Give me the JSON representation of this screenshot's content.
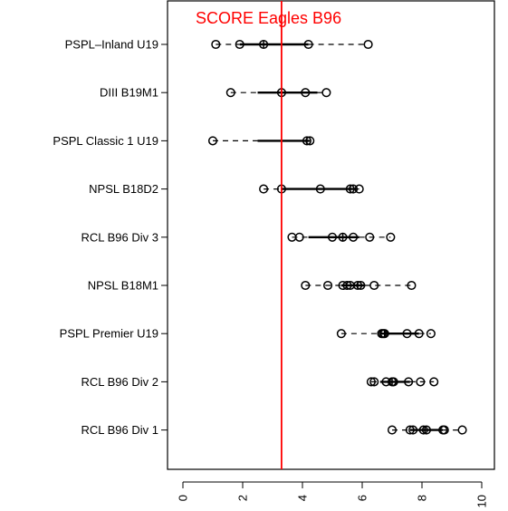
{
  "chart_data": {
    "type": "scatter",
    "title": "",
    "xlabel": "",
    "ylabel": "",
    "xlim": [
      -0.4,
      10.4
    ],
    "x_ticks": [
      "0",
      "2",
      "4",
      "6",
      "8",
      "10"
    ],
    "grid": false,
    "reference_line": {
      "label": "SCORE Eagles B96",
      "x": 3.3,
      "color": "#ff0000"
    },
    "categories": [
      "PSPL–Inland U19",
      "DIII B19M1",
      "PSPL Classic 1 U19",
      "NPSL B18D2",
      "RCL B96 Div 3",
      "NPSL B18M1",
      "PSPL Premier U19",
      "RCL B96 Div 2",
      "RCL B96 Div 1"
    ],
    "series": [
      {
        "points": [
          1.1,
          1.9,
          2.7,
          4.2,
          6.2
        ],
        "box": [
          1.9,
          2.7,
          4.2
        ]
      },
      {
        "points": [
          1.6,
          3.3,
          4.1,
          4.8
        ],
        "box": [
          2.5,
          3.3,
          4.5
        ]
      },
      {
        "points": [
          1.0,
          4.15,
          4.25
        ],
        "box": [
          2.5,
          4.15,
          4.25
        ]
      },
      {
        "points": [
          2.7,
          3.3,
          4.6,
          5.6,
          5.7,
          5.9
        ],
        "box": [
          3.3,
          5.6,
          5.8
        ]
      },
      {
        "points": [
          3.65,
          3.9,
          5.0,
          5.35,
          5.7,
          6.25,
          6.95
        ],
        "box": [
          4.2,
          5.35,
          5.9
        ]
      },
      {
        "points": [
          4.1,
          4.85,
          5.35,
          5.5,
          5.6,
          5.85,
          5.95,
          6.4,
          7.65
        ],
        "box": [
          5.3,
          5.85,
          6.1
        ]
      },
      {
        "points": [
          5.3,
          6.65,
          6.7,
          6.75,
          7.5,
          7.9,
          8.3
        ],
        "box": [
          6.6,
          6.75,
          7.9
        ]
      },
      {
        "points": [
          6.3,
          6.4,
          6.8,
          7.0,
          7.05,
          7.55,
          7.95,
          8.4
        ],
        "box": [
          6.6,
          7.0,
          7.6
        ]
      },
      {
        "points": [
          7.0,
          7.6,
          7.7,
          8.05,
          8.15,
          8.7,
          8.75,
          9.35
        ],
        "box": [
          7.6,
          8.1,
          8.7
        ]
      }
    ]
  }
}
